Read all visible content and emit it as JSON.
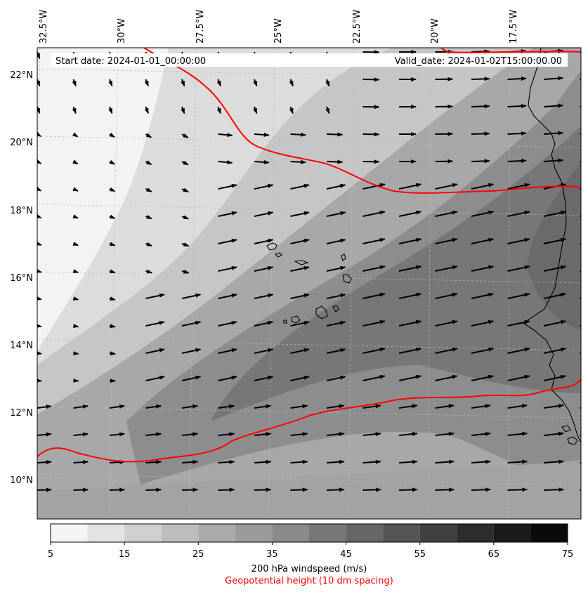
{
  "header": {
    "start_date": "Start date: 2024-01-01_00:00:00",
    "valid_date": "Valid_date: 2024-01-02T15:00:00.00"
  },
  "longitude_labels": [
    "32.5°W",
    "30°W",
    "27.5°W",
    "25°W",
    "22.5°W",
    "20°W",
    "17.5°W"
  ],
  "latitude_labels": [
    "22°N",
    "20°N",
    "18°N",
    "16°N",
    "14°N",
    "12°N",
    "10°N"
  ],
  "colorbar": {
    "ticks": [
      "5",
      "15",
      "25",
      "35",
      "45",
      "55",
      "65",
      "75"
    ],
    "levels": [
      5,
      10,
      15,
      20,
      25,
      30,
      35,
      40,
      45,
      50,
      55,
      60,
      65,
      70,
      75
    ],
    "colors": [
      "#f5f5f5",
      "#e3e3e3",
      "#d0d0d0",
      "#bdbdbd",
      "#aaaaaa",
      "#9b9b9b",
      "#8a8a8a",
      "#777777",
      "#666666",
      "#555555",
      "#404040",
      "#2c2c2c",
      "#1a1a1a",
      "#0a0a0a"
    ],
    "label": "200 hPa windspeed (m/s)",
    "sublabel": "Geopotential height (10 dm spacing)"
  },
  "map": {
    "lon_range": [
      -32.5,
      -15.5
    ],
    "lat_range": [
      8.9,
      22.8
    ],
    "coastline_color": "#000000",
    "contour_color": "#ff0000",
    "gridlines": true,
    "vector_color": "#000000"
  }
}
